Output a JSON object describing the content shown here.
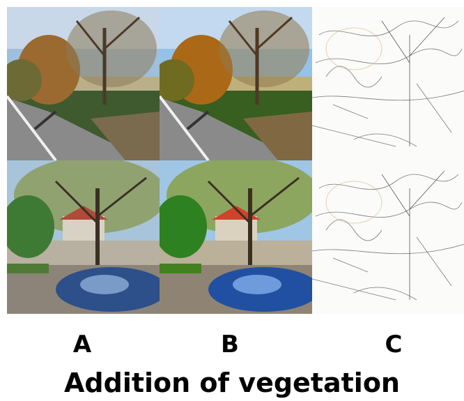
{
  "labels": [
    "A",
    "B",
    "C"
  ],
  "caption": "Addition of vegetation"
}
